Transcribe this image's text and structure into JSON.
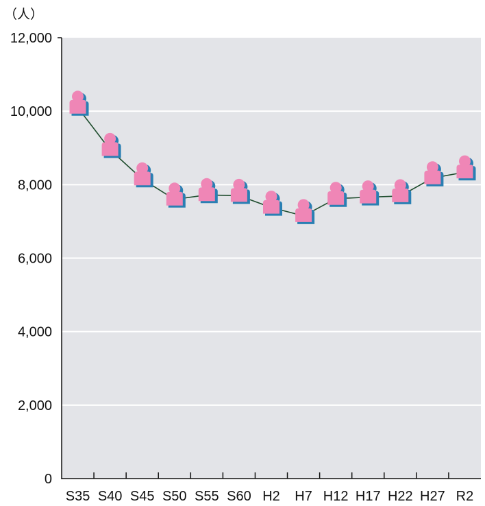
{
  "chart_data": {
    "type": "line",
    "title": "",
    "xlabel": "",
    "ylabel": "（人）",
    "categories": [
      "S35",
      "S40",
      "S45",
      "S50",
      "S55",
      "S60",
      "H2",
      "H7",
      "H12",
      "H17",
      "H22",
      "H27",
      "R2"
    ],
    "series": [
      {
        "values": [
          10100,
          8950,
          8150,
          7600,
          7720,
          7700,
          7380,
          7150,
          7620,
          7660,
          7690,
          8180,
          8340
        ]
      }
    ],
    "ylim": [
      0,
      12000
    ],
    "yticks": [
      0,
      2000,
      4000,
      6000,
      8000,
      10000,
      12000
    ],
    "ytick_labels": [
      "0",
      "2,000",
      "4,000",
      "6,000",
      "8,000",
      "10,000",
      "12,000"
    ],
    "grid": "horizontal",
    "legend": "none",
    "marker": "person-icon",
    "colors": {
      "plot_background": "#e3e4e8",
      "gridline": "#ffffff",
      "line": "#1f4d2e",
      "marker_body": "#ef86b6",
      "marker_shadow": "#2a7fb3"
    }
  }
}
